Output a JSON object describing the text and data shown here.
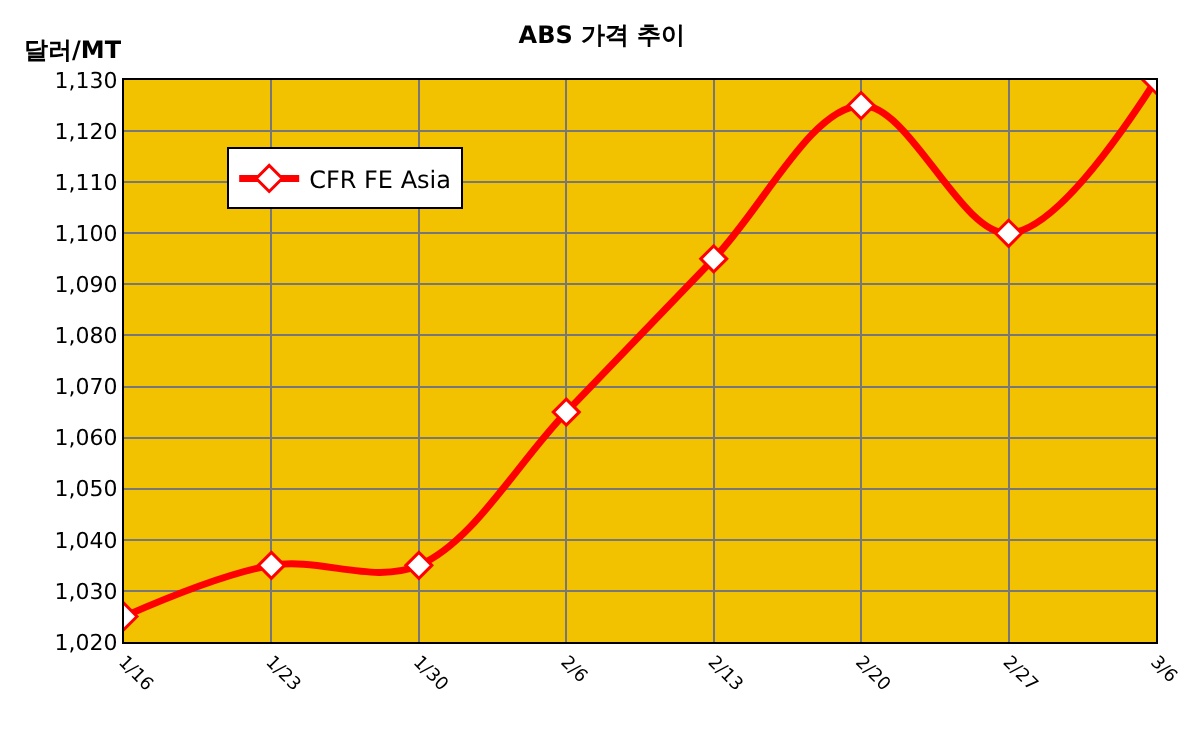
{
  "chart_data": {
    "type": "line",
    "title": "ABS 가격 추이",
    "ylabel": "달러/MT",
    "categories": [
      "1/16",
      "1/23",
      "1/30",
      "2/6",
      "2/13",
      "2/20",
      "2/27",
      "3/6"
    ],
    "series": [
      {
        "name": "CFR FE Asia",
        "color": "#ff0000",
        "values": [
          1025,
          1035,
          1035,
          1065,
          1095,
          1125,
          1100,
          1130
        ]
      }
    ],
    "ylim": [
      1020,
      1130
    ],
    "yticks": [
      {
        "value": 1020,
        "label": "1,020"
      },
      {
        "value": 1030,
        "label": "1,030"
      },
      {
        "value": 1040,
        "label": "1,040"
      },
      {
        "value": 1050,
        "label": "1,050"
      },
      {
        "value": 1060,
        "label": "1,060"
      },
      {
        "value": 1070,
        "label": "1,070"
      },
      {
        "value": 1080,
        "label": "1,080"
      },
      {
        "value": 1090,
        "label": "1,090"
      },
      {
        "value": 1100,
        "label": "1,100"
      },
      {
        "value": 1110,
        "label": "1,110"
      },
      {
        "value": 1120,
        "label": "1,120"
      },
      {
        "value": 1130,
        "label": "1,130"
      }
    ],
    "grid": true,
    "legend": "top left",
    "marker": "diamond",
    "line_style": "solid"
  }
}
